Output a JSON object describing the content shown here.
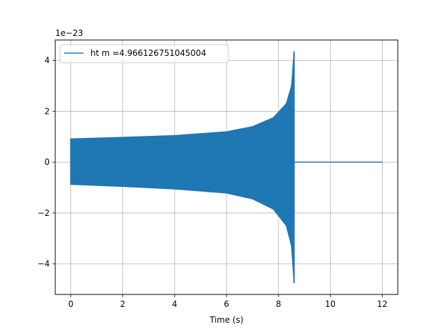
{
  "chart_data": {
    "type": "line",
    "title": "",
    "xlabel": "Time (s)",
    "ylabel": "",
    "y_offset_label": "1e−23",
    "y_scale_exponent": -23,
    "xlim": [
      -0.6,
      12.6
    ],
    "ylim": [
      -5.2,
      4.8
    ],
    "x_ticks": [
      0,
      2,
      4,
      6,
      8,
      10,
      12
    ],
    "x_tick_labels": [
      "0",
      "2",
      "4",
      "6",
      "8",
      "10",
      "12"
    ],
    "y_ticks": [
      -4,
      -2,
      0,
      2,
      4
    ],
    "y_tick_labels": [
      "−4",
      "−2",
      "0",
      "2",
      "4"
    ],
    "grid": true,
    "legend": {
      "placement": "top-left"
    },
    "colors": {
      "series": "#1f77b4",
      "grid": "#b0b0b0",
      "axes": "#000000"
    },
    "series": [
      {
        "name": "ht m =4.966126751045004",
        "description_points": {
          "envelope_upper": [
            [
              0,
              0.92
            ],
            [
              2,
              0.98
            ],
            [
              4,
              1.05
            ],
            [
              6,
              1.2
            ],
            [
              7,
              1.4
            ],
            [
              7.8,
              1.75
            ],
            [
              8.3,
              2.3
            ],
            [
              8.5,
              3.0
            ],
            [
              8.6,
              4.35
            ]
          ],
          "envelope_lower": [
            [
              0,
              -0.88
            ],
            [
              2,
              -0.96
            ],
            [
              4,
              -1.06
            ],
            [
              6,
              -1.22
            ],
            [
              7,
              -1.45
            ],
            [
              7.8,
              -1.85
            ],
            [
              8.3,
              -2.5
            ],
            [
              8.5,
              -3.3
            ],
            [
              8.6,
              -4.75
            ]
          ],
          "post_merger": [
            [
              8.62,
              0.0
            ],
            [
              12.0,
              0.0
            ]
          ]
        }
      }
    ]
  }
}
